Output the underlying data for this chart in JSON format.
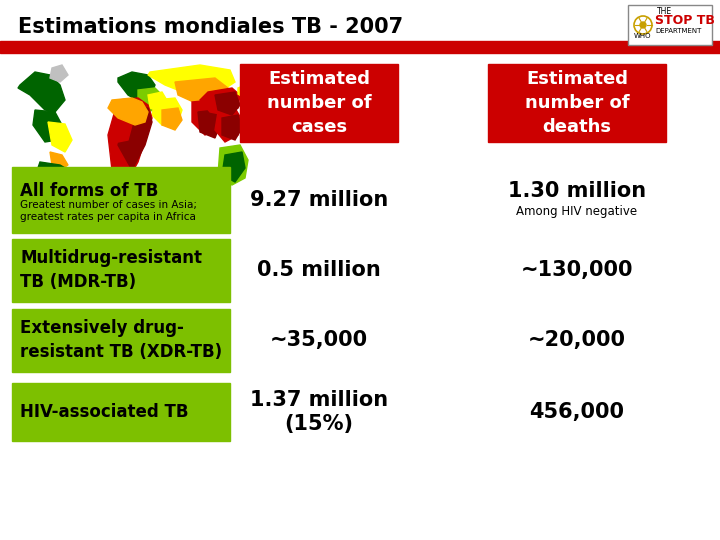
{
  "title": "Estimations mondiales TB - 2007",
  "title_fontsize": 15,
  "bg_color": "#ffffff",
  "red_bar_color": "#cc0000",
  "red_header_color": "#cc0000",
  "green_label_color": "#7dc000",
  "row_labels": [
    "All forms of TB",
    "Multidrug-resistant\nTB (MDR-TB)",
    "Extensively drug-\nresistant TB (XDR-TB)",
    "HIV-associated TB"
  ],
  "row_sublabels": [
    "Greatest number of cases in Asia;\ngreatest rates per capita in Africa",
    "",
    "",
    ""
  ],
  "col_headers": [
    "Estimated\nnumber of\ncases",
    "Estimated\nnumber of\ndeaths"
  ],
  "cases": [
    "9.27 million",
    "0.5 million",
    "~35,000",
    "1.37 million\n(15%)"
  ],
  "deaths": [
    "1.30 million",
    "~130,000",
    "~20,000",
    "456,000"
  ],
  "death_sublabels": [
    "Among HIV negative",
    "",
    "",
    ""
  ],
  "cases_fontsize": 15,
  "deaths_fontsize": 15,
  "label_fontsize": 12,
  "sublabel_fontsize": 7.5,
  "header_fontsize": 13,
  "map_colors": {
    "dark_green": "#006400",
    "mid_green": "#228b22",
    "light_green": "#7ccc00",
    "yellow": "#ffff00",
    "orange": "#ffa500",
    "red": "#cc0000",
    "dark_red": "#8b0000",
    "grey": "#c0c0c0"
  }
}
